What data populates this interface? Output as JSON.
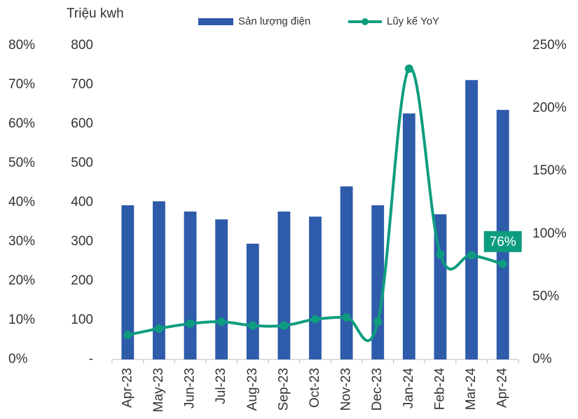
{
  "chart_data": {
    "type": "bar-line",
    "y_label": "Triệu kwh",
    "categories": [
      "Apr-23",
      "May-23",
      "Jun-23",
      "Jul-23",
      "Aug-23",
      "Sep-23",
      "Oct-23",
      "Nov-23",
      "Dec-23",
      "Jan-24",
      "Feb-24",
      "Mar-24",
      "Apr-24"
    ],
    "series": [
      {
        "name": "Sản lượng điện",
        "color": "#2e5baa",
        "type": "bar",
        "values": [
          393,
          403,
          377,
          357,
          295,
          377,
          364,
          441,
          393,
          627,
          370,
          712,
          636
        ]
      },
      {
        "name": "Lũy kế YoY",
        "color": "#0e9c7f",
        "type": "line",
        "axis": "y2",
        "values": [
          19.5,
          24.6,
          28.5,
          30,
          27,
          27,
          32,
          33.5,
          30,
          231.6,
          83.7,
          83,
          76
        ],
        "value_labels": [
          null,
          null,
          null,
          null,
          null,
          null,
          null,
          null,
          null,
          null,
          null,
          null,
          "76%"
        ]
      }
    ],
    "ylim": [
      0,
      800
    ],
    "yticks": [
      {
        "value": 0,
        "label": "-"
      },
      100,
      200,
      300,
      400,
      500,
      600,
      700,
      800
    ],
    "y2lim": [
      0,
      250
    ],
    "y2ticks": [
      {
        "value": 0,
        "label": "0%"
      },
      {
        "value": 50,
        "label": "50%"
      },
      {
        "value": 100,
        "label": "100%"
      },
      {
        "value": 150,
        "label": "150%"
      },
      {
        "value": 200,
        "label": "200%"
      },
      {
        "value": 250,
        "label": "250%"
      }
    ],
    "y3lim": [
      0,
      80
    ],
    "y3ticks": [
      {
        "value": 0,
        "label": "0%"
      },
      {
        "value": 10,
        "label": "10%"
      },
      {
        "value": 20,
        "label": "20%"
      },
      {
        "value": 30,
        "label": "30%"
      },
      {
        "value": 40,
        "label": "40%"
      },
      {
        "value": 50,
        "label": "50%"
      },
      {
        "value": 60,
        "label": "60%"
      },
      {
        "value": 70,
        "label": "70%"
      },
      {
        "value": 80,
        "label": "80%"
      }
    ],
    "legend": "top"
  }
}
